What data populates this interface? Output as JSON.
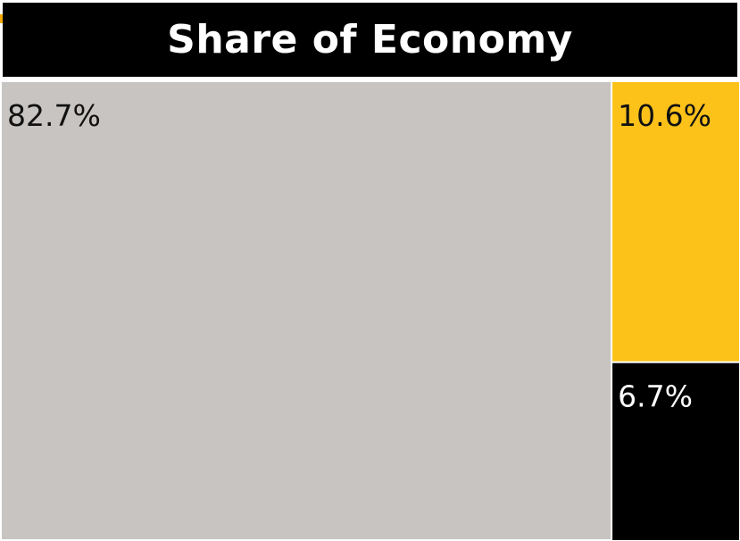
{
  "chart_data": {
    "type": "treemap",
    "title": "Share of Economy",
    "slices": [
      {
        "label": "82.7%",
        "value": 82.7,
        "color": "#c8c4c1",
        "text_color": "#111111"
      },
      {
        "label": "10.6%",
        "value": 10.6,
        "color": "#fdc21a",
        "text_color": "#111111"
      },
      {
        "label": "6.7%",
        "value": 6.7,
        "color": "#000000",
        "text_color": "#ffffff"
      }
    ]
  }
}
